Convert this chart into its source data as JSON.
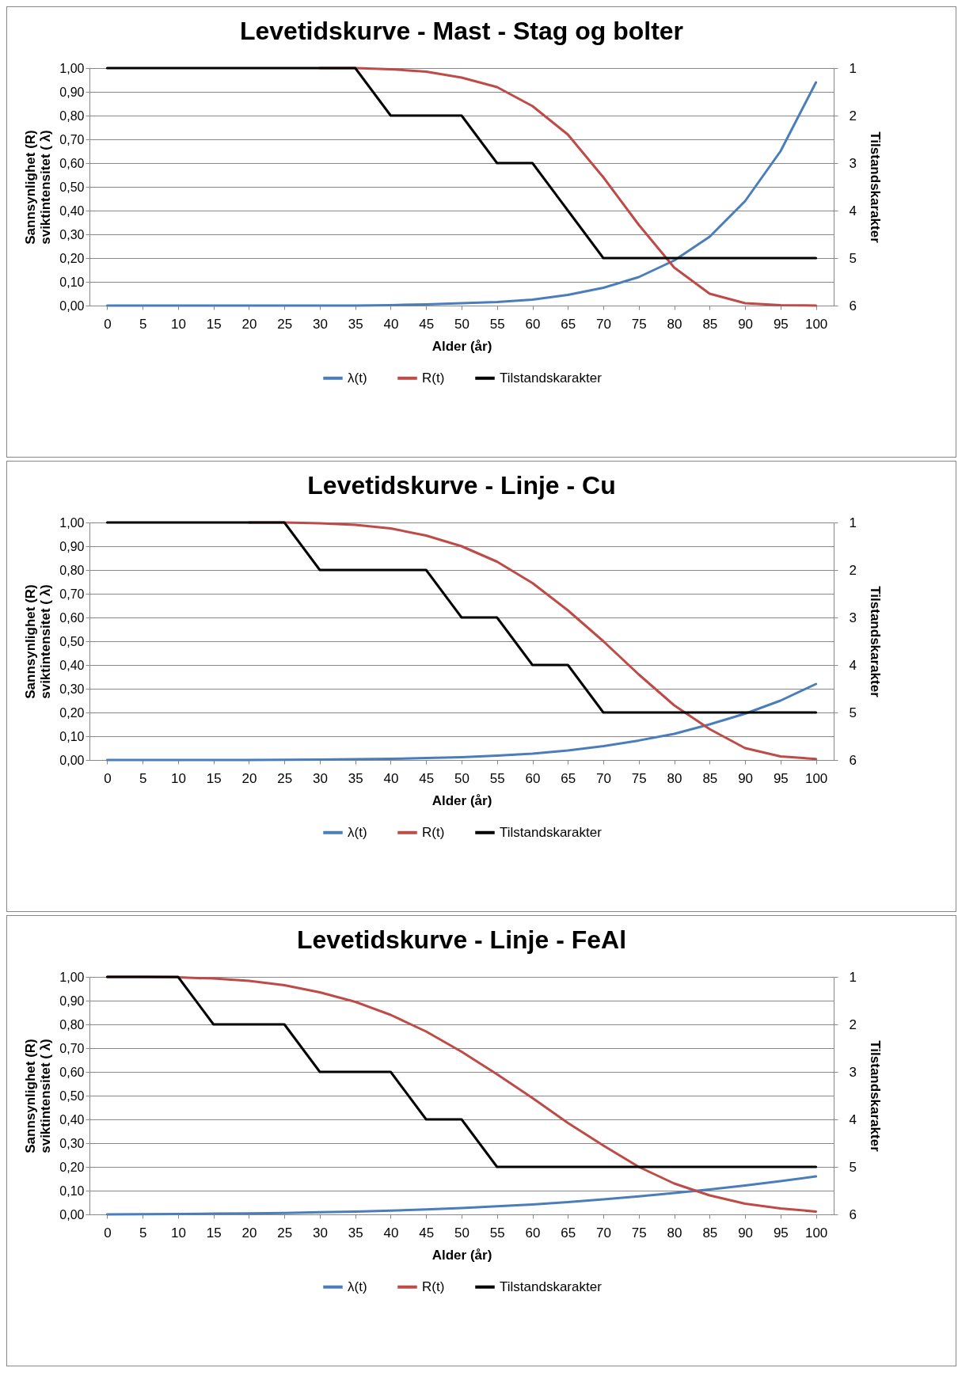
{
  "chart_data": [
    {
      "type": "line",
      "title": "Levetidskurve - Mast - Stag og bolter",
      "xlabel": "Alder (år)",
      "ylabel": "Sannsynlighet (R)\nsviktintensitet ( λ)",
      "y2label": "Tilstandskarakter",
      "categories": [
        "0",
        "5",
        "10",
        "15",
        "20",
        "25",
        "30",
        "35",
        "40",
        "45",
        "50",
        "55",
        "60",
        "65",
        "70",
        "75",
        "80",
        "85",
        "90",
        "95",
        "100"
      ],
      "series": [
        {
          "name": "λ(t)",
          "color": "#4a7ebb",
          "values": [
            0,
            0,
            0,
            0,
            0,
            0,
            0,
            0,
            0.002,
            0.005,
            0.01,
            0.015,
            0.025,
            0.045,
            0.075,
            0.12,
            0.19,
            0.29,
            0.44,
            0.65,
            0.94
          ]
        },
        {
          "name": "R(t)",
          "color": "#be4b48",
          "values": [
            null,
            null,
            null,
            null,
            null,
            null,
            1,
            1,
            0.995,
            0.985,
            0.96,
            0.92,
            0.84,
            0.72,
            0.54,
            0.34,
            0.16,
            0.05,
            0.01,
            0.002,
            0
          ]
        },
        {
          "name": "Tilstandskarakter",
          "color": "#000000",
          "axis": "y2",
          "values": [
            1,
            1,
            1,
            1,
            1,
            1,
            1,
            1,
            2,
            2,
            2,
            3,
            3,
            4,
            5,
            5,
            5,
            5,
            5,
            5,
            5
          ]
        }
      ],
      "ylim": [
        0,
        1
      ],
      "yticks": [
        {
          "value": 0,
          "label": "0,00"
        },
        {
          "value": 0.1,
          "label": "0,10"
        },
        {
          "value": 0.2,
          "label": "0,20"
        },
        {
          "value": 0.3,
          "label": "0,30"
        },
        {
          "value": 0.4,
          "label": "0,40"
        },
        {
          "value": 0.5,
          "label": "0,50"
        },
        {
          "value": 0.6,
          "label": "0,60"
        },
        {
          "value": 0.7,
          "label": "0,70"
        },
        {
          "value": 0.8,
          "label": "0,80"
        },
        {
          "value": 0.9,
          "label": "0,90"
        },
        {
          "value": 1,
          "label": "1,00"
        }
      ],
      "y2lim": [
        6,
        1
      ],
      "y2ticks": [
        1,
        2,
        3,
        4,
        5,
        6
      ],
      "grid": "y",
      "legend": "bottom",
      "marker": "none",
      "line_style": "solid"
    },
    {
      "type": "line",
      "title": "Levetidskurve - Linje - Cu",
      "xlabel": "Alder (år)",
      "ylabel": "Sannsynlighet (R)\nsviktintensitet ( λ)",
      "y2label": "Tilstandskarakter",
      "categories": [
        "0",
        "5",
        "10",
        "15",
        "20",
        "25",
        "30",
        "35",
        "40",
        "45",
        "50",
        "55",
        "60",
        "65",
        "70",
        "75",
        "80",
        "85",
        "90",
        "95",
        "100"
      ],
      "series": [
        {
          "name": "λ(t)",
          "color": "#4a7ebb",
          "values": [
            0,
            0,
            0,
            0,
            0,
            0.001,
            0.002,
            0.003,
            0.005,
            0.008,
            0.012,
            0.018,
            0.027,
            0.04,
            0.058,
            0.082,
            0.11,
            0.15,
            0.195,
            0.25,
            0.32
          ]
        },
        {
          "name": "R(t)",
          "color": "#be4b48",
          "values": [
            null,
            null,
            null,
            null,
            1,
            1,
            0.997,
            0.99,
            0.975,
            0.945,
            0.9,
            0.835,
            0.745,
            0.63,
            0.5,
            0.36,
            0.23,
            0.13,
            0.05,
            0.015,
            0.004
          ]
        },
        {
          "name": "Tilstandskarakter",
          "color": "#000000",
          "axis": "y2",
          "values": [
            1,
            1,
            1,
            1,
            1,
            1,
            2,
            2,
            2,
            2,
            3,
            3,
            4,
            4,
            5,
            5,
            5,
            5,
            5,
            5,
            5
          ]
        }
      ],
      "ylim": [
        0,
        1
      ],
      "yticks": [
        {
          "value": 0,
          "label": "0,00"
        },
        {
          "value": 0.1,
          "label": "0,10"
        },
        {
          "value": 0.2,
          "label": "0,20"
        },
        {
          "value": 0.3,
          "label": "0,30"
        },
        {
          "value": 0.4,
          "label": "0,40"
        },
        {
          "value": 0.5,
          "label": "0,50"
        },
        {
          "value": 0.6,
          "label": "0,60"
        },
        {
          "value": 0.7,
          "label": "0,70"
        },
        {
          "value": 0.8,
          "label": "0,80"
        },
        {
          "value": 0.9,
          "label": "0,90"
        },
        {
          "value": 1,
          "label": "1,00"
        }
      ],
      "y2lim": [
        6,
        1
      ],
      "y2ticks": [
        1,
        2,
        3,
        4,
        5,
        6
      ],
      "grid": "y",
      "legend": "bottom",
      "marker": "none",
      "line_style": "solid"
    },
    {
      "type": "line",
      "title": "Levetidskurve - Linje - FeAl",
      "xlabel": "Alder (år)",
      "ylabel": "Sannsynlighet (R)\nsviktintensitet ( λ)",
      "y2label": "Tilstandskarakter",
      "categories": [
        "0",
        "5",
        "10",
        "15",
        "20",
        "25",
        "30",
        "35",
        "40",
        "45",
        "50",
        "55",
        "60",
        "65",
        "70",
        "75",
        "80",
        "85",
        "90",
        "95",
        "100"
      ],
      "series": [
        {
          "name": "λ(t)",
          "color": "#4a7ebb",
          "values": [
            0,
            0.001,
            0.002,
            0.003,
            0.004,
            0.006,
            0.009,
            0.012,
            0.016,
            0.021,
            0.027,
            0.034,
            0.042,
            0.052,
            0.063,
            0.076,
            0.09,
            0.105,
            0.122,
            0.14,
            0.16
          ]
        },
        {
          "name": "R(t)",
          "color": "#be4b48",
          "values": [
            1,
            1,
            0.998,
            0.993,
            0.983,
            0.965,
            0.935,
            0.895,
            0.84,
            0.77,
            0.685,
            0.59,
            0.49,
            0.385,
            0.29,
            0.2,
            0.13,
            0.08,
            0.045,
            0.025,
            0.012
          ]
        },
        {
          "name": "Tilstandskarakter",
          "color": "#000000",
          "axis": "y2",
          "values": [
            1,
            1,
            1,
            2,
            2,
            2,
            3,
            3,
            3,
            4,
            4,
            5,
            5,
            5,
            5,
            5,
            5,
            5,
            5,
            5,
            5
          ]
        }
      ],
      "ylim": [
        0,
        1
      ],
      "yticks": [
        {
          "value": 0,
          "label": "0,00"
        },
        {
          "value": 0.1,
          "label": "0,10"
        },
        {
          "value": 0.2,
          "label": "0,20"
        },
        {
          "value": 0.3,
          "label": "0,30"
        },
        {
          "value": 0.4,
          "label": "0,40"
        },
        {
          "value": 0.5,
          "label": "0,50"
        },
        {
          "value": 0.6,
          "label": "0,60"
        },
        {
          "value": 0.7,
          "label": "0,70"
        },
        {
          "value": 0.8,
          "label": "0,80"
        },
        {
          "value": 0.9,
          "label": "0,90"
        },
        {
          "value": 1,
          "label": "1,00"
        }
      ],
      "y2lim": [
        6,
        1
      ],
      "y2ticks": [
        1,
        2,
        3,
        4,
        5,
        6
      ],
      "grid": "y",
      "legend": "bottom",
      "marker": "none",
      "line_style": "solid"
    }
  ]
}
